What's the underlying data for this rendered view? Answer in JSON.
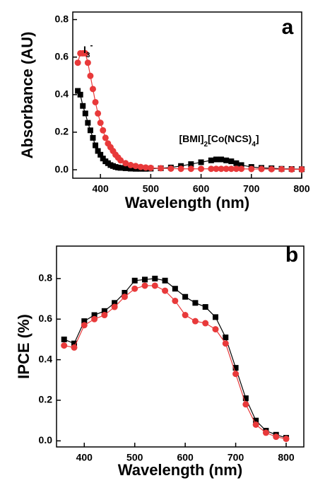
{
  "chart_data": [
    {
      "type": "line",
      "panel": "a",
      "xlabel": "Wavelength (nm)",
      "ylabel": "Absorbance (AU)",
      "x": [
        355,
        360,
        365,
        370,
        375,
        380,
        385,
        390,
        395,
        400,
        405,
        410,
        415,
        420,
        425,
        430,
        435,
        440,
        450,
        460,
        470,
        480,
        490,
        500,
        520,
        540,
        560,
        580,
        600,
        620,
        630,
        640,
        650,
        660,
        670,
        680,
        700,
        720,
        740,
        760,
        780,
        800
      ],
      "series": [
        {
          "name": "[BMI]2[Co(NCS)4]",
          "color": "#000000",
          "marker": "square",
          "values": [
            0.42,
            0.4,
            0.34,
            0.3,
            0.25,
            0.21,
            0.17,
            0.13,
            0.1,
            0.08,
            0.06,
            0.045,
            0.035,
            0.025,
            0.02,
            0.015,
            0.012,
            0.01,
            0.008,
            0.006,
            0.005,
            0.005,
            0.005,
            0.006,
            0.008,
            0.012,
            0.02,
            0.03,
            0.04,
            0.05,
            0.055,
            0.055,
            0.05,
            0.045,
            0.035,
            0.025,
            0.015,
            0.01,
            0.008,
            0.005,
            0.004,
            0.003
          ]
        },
        {
          "name": "I3-",
          "color": "#e8393a",
          "marker": "circle",
          "values": [
            0.57,
            0.62,
            0.62,
            0.62,
            0.57,
            0.5,
            0.43,
            0.36,
            0.3,
            0.25,
            0.21,
            0.17,
            0.14,
            0.12,
            0.1,
            0.08,
            0.065,
            0.05,
            0.035,
            0.025,
            0.02,
            0.015,
            0.012,
            0.01,
            0.008,
            0.006,
            0.005,
            0.005,
            0.005,
            0.005,
            0.005,
            0.005,
            0.005,
            0.005,
            0.005,
            0.005,
            0.004,
            0.004,
            0.003,
            0.003,
            0.002,
            0.002
          ]
        }
      ],
      "xlim": [
        345,
        800
      ],
      "xticks": [
        400,
        500,
        600,
        700,
        800
      ],
      "ylim": [
        -0.045,
        0.84
      ],
      "yticks": [
        {
          "value": 0,
          "label": "0.0"
        },
        {
          "value": 0.2,
          "label": "0.2"
        },
        {
          "value": 0.4,
          "label": "0.4"
        },
        {
          "value": 0.6,
          "label": "0.6"
        },
        {
          "value": 0.8,
          "label": "0.8"
        }
      ]
    },
    {
      "type": "line",
      "panel": "b",
      "xlabel": "Wavelength (nm)",
      "ylabel": "IPCE (%)",
      "x": [
        360,
        380,
        400,
        420,
        440,
        460,
        480,
        500,
        520,
        540,
        560,
        580,
        600,
        620,
        640,
        660,
        680,
        700,
        720,
        740,
        760,
        780,
        800
      ],
      "series": [
        {
          "color": "#000000",
          "marker": "square",
          "values": [
            0.5,
            0.48,
            0.59,
            0.62,
            0.64,
            0.68,
            0.73,
            0.79,
            0.795,
            0.8,
            0.79,
            0.75,
            0.71,
            0.68,
            0.66,
            0.61,
            0.51,
            0.36,
            0.21,
            0.1,
            0.05,
            0.03,
            0.015
          ]
        },
        {
          "color": "#e8393a",
          "marker": "circle",
          "values": [
            0.47,
            0.46,
            0.57,
            0.6,
            0.62,
            0.66,
            0.71,
            0.75,
            0.765,
            0.765,
            0.74,
            0.69,
            0.62,
            0.59,
            0.58,
            0.55,
            0.48,
            0.33,
            0.18,
            0.08,
            0.04,
            0.02,
            0.01
          ]
        }
      ],
      "xlim": [
        345,
        835
      ],
      "xticks": [
        400,
        500,
        600,
        700,
        800
      ],
      "ylim": [
        -0.03,
        0.96
      ],
      "yticks": [
        {
          "value": 0,
          "label": "0.0"
        },
        {
          "value": 0.2,
          "label": "0.2"
        },
        {
          "value": 0.4,
          "label": "0.4"
        },
        {
          "value": 0.6,
          "label": "0.6"
        },
        {
          "value": 0.8,
          "label": "0.8"
        }
      ]
    }
  ]
}
